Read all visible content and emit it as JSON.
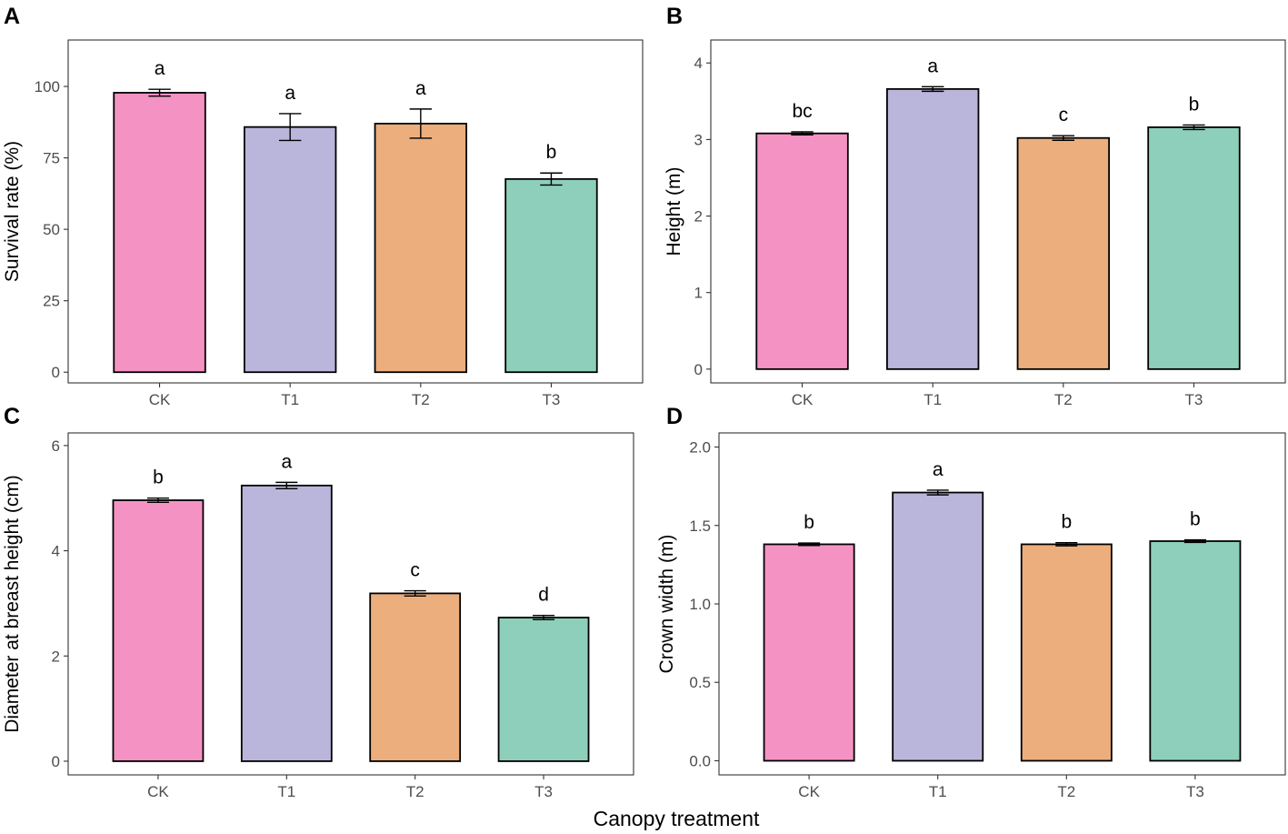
{
  "x_axis_title": "Canopy treatment",
  "chart_data": [
    {
      "panel": "A",
      "type": "bar",
      "categories": [
        "CK",
        "T1",
        "T2",
        "T3"
      ],
      "values": [
        97.8,
        85.8,
        87,
        67.6
      ],
      "errors": [
        1.2,
        4.7,
        5.1,
        2.1
      ],
      "significance": [
        "a",
        "a",
        "a",
        "b"
      ],
      "colors": [
        "#F493C3",
        "#BAB6DB",
        "#ECAE7D",
        "#8ECFBB"
      ],
      "ylabel": "Survival rate (%)",
      "xlabel": "",
      "yticks": [
        0,
        25,
        50,
        75,
        100
      ],
      "ylim": [
        -3.75,
        116.25
      ]
    },
    {
      "panel": "B",
      "type": "bar",
      "categories": [
        "CK",
        "T1",
        "T2",
        "T3"
      ],
      "values": [
        3.08,
        3.66,
        3.02,
        3.16
      ],
      "errors": [
        0.02,
        0.03,
        0.03,
        0.03
      ],
      "significance": [
        "bc",
        "a",
        "c",
        "b"
      ],
      "colors": [
        "#F493C3",
        "#BAB6DB",
        "#ECAE7D",
        "#8ECFBB"
      ],
      "ylabel": "Height (m)",
      "xlabel": "",
      "yticks": [
        0,
        1,
        2,
        3,
        4
      ],
      "ylim": [
        -0.18,
        4.3
      ]
    },
    {
      "panel": "C",
      "type": "bar",
      "categories": [
        "CK",
        "T1",
        "T2",
        "T3"
      ],
      "values": [
        4.96,
        5.24,
        3.19,
        2.73
      ],
      "errors": [
        0.04,
        0.06,
        0.05,
        0.04
      ],
      "significance": [
        "b",
        "a",
        "c",
        "d"
      ],
      "colors": [
        "#F493C3",
        "#BAB6DB",
        "#ECAE7D",
        "#8ECFBB"
      ],
      "ylabel": "Diameter at breast height (cm)",
      "xlabel": "",
      "yticks": [
        0,
        2,
        4,
        6
      ],
      "ylim": [
        -0.26,
        6.24
      ]
    },
    {
      "panel": "D",
      "type": "bar",
      "categories": [
        "CK",
        "T1",
        "T2",
        "T3"
      ],
      "values": [
        1.38,
        1.71,
        1.38,
        1.4
      ],
      "errors": [
        0.008,
        0.015,
        0.01,
        0.008
      ],
      "significance": [
        "b",
        "a",
        "b",
        "b"
      ],
      "colors": [
        "#F493C3",
        "#BAB6DB",
        "#ECAE7D",
        "#8ECFBB"
      ],
      "ylabel": "Crown width (m)",
      "xlabel": "",
      "yticks": [
        "0.0",
        "0.5",
        "1.0",
        "1.5",
        "2.0"
      ],
      "ylim": [
        -0.09,
        2.09
      ]
    }
  ]
}
